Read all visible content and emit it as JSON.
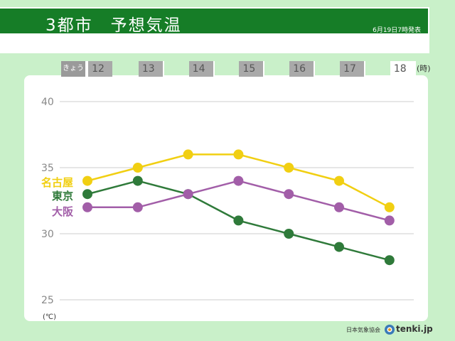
{
  "header": {
    "title": "3都市　予想気温",
    "date": "6月19日7時発表"
  },
  "time_strip": {
    "today_label": "きょう",
    "hour_unit": "(時)"
  },
  "footer": {
    "org": "日本気象協会",
    "logo_text": "tenki.jp",
    "logo_icon": "tenki-sun-icon"
  },
  "chart_data": {
    "type": "line",
    "x": [
      12,
      13,
      14,
      15,
      16,
      17,
      18
    ],
    "ylabel": "(℃)",
    "ylim": [
      25,
      40
    ],
    "yticks": [
      25,
      30,
      35,
      40
    ],
    "grid": true,
    "series": [
      {
        "name": "名古屋",
        "color": "#f1cf12",
        "values": [
          34,
          35,
          36,
          36,
          35,
          34,
          32
        ]
      },
      {
        "name": "東京",
        "color": "#2f7a3a",
        "values": [
          33,
          34,
          33,
          31,
          30,
          29,
          28
        ]
      },
      {
        "name": "大阪",
        "color": "#a25ea8",
        "values": [
          32,
          32,
          33,
          34,
          33,
          32,
          31
        ]
      }
    ]
  }
}
